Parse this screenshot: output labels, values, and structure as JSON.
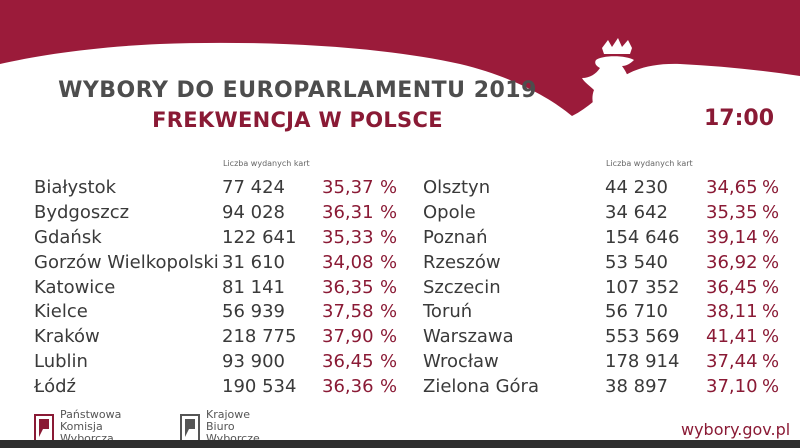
{
  "header": {
    "title": "WYBORY DO EUROPARLAMENTU 2019",
    "subtitle": "FREKWENCJA W POLSCE",
    "time": "17:00"
  },
  "columns": {
    "cards_label": "Liczba wydanych kart",
    "percent_sign": "%"
  },
  "left_rows": [
    {
      "city": "Białystok",
      "cards": "77 424",
      "turnout": "35,37"
    },
    {
      "city": "Bydgoszcz",
      "cards": "94 028",
      "turnout": "36,31"
    },
    {
      "city": "Gdańsk",
      "cards": "122 641",
      "turnout": "35,33"
    },
    {
      "city": "Gorzów Wielkopolski",
      "cards": "31 610",
      "turnout": "34,08"
    },
    {
      "city": "Katowice",
      "cards": "81 141",
      "turnout": "36,35"
    },
    {
      "city": "Kielce",
      "cards": "56 939",
      "turnout": "37,58"
    },
    {
      "city": "Kraków",
      "cards": "218 775",
      "turnout": "37,90"
    },
    {
      "city": "Lublin",
      "cards": "93 900",
      "turnout": "36,45"
    },
    {
      "city": "Łódź",
      "cards": "190 534",
      "turnout": "36,36"
    }
  ],
  "right_rows": [
    {
      "city": "Olsztyn",
      "cards": "44 230",
      "turnout": "34,65"
    },
    {
      "city": "Opole",
      "cards": "34 642",
      "turnout": "35,35"
    },
    {
      "city": "Poznań",
      "cards": "154 646",
      "turnout": "39,14"
    },
    {
      "city": "Rzeszów",
      "cards": "53 540",
      "turnout": "36,92"
    },
    {
      "city": "Szczecin",
      "cards": "107 352",
      "turnout": "36,45"
    },
    {
      "city": "Toruń",
      "cards": "56 710",
      "turnout": "38,11"
    },
    {
      "city": "Warszawa",
      "cards": "553 569",
      "turnout": "41,41"
    },
    {
      "city": "Wrocław",
      "cards": "178 914",
      "turnout": "37,44"
    },
    {
      "city": "Zielona Góra",
      "cards": "38 897",
      "turnout": "37,10"
    }
  ],
  "footer": {
    "pkw_lines": [
      "Państwowa",
      "Komisja",
      "Wyborcza"
    ],
    "kbw_lines": [
      "Krajowe",
      "Biuro",
      "Wyborcze"
    ],
    "url": "wybory.gov.pl"
  },
  "colors": {
    "accent": "#8a1a35",
    "banner": "#9b1b3a",
    "text": "#3a3a3a"
  },
  "icons": {
    "emblem": "white-eagle-icon",
    "pkw_logo": "pkw-logo-icon",
    "kbw_logo": "kbw-logo-icon"
  }
}
